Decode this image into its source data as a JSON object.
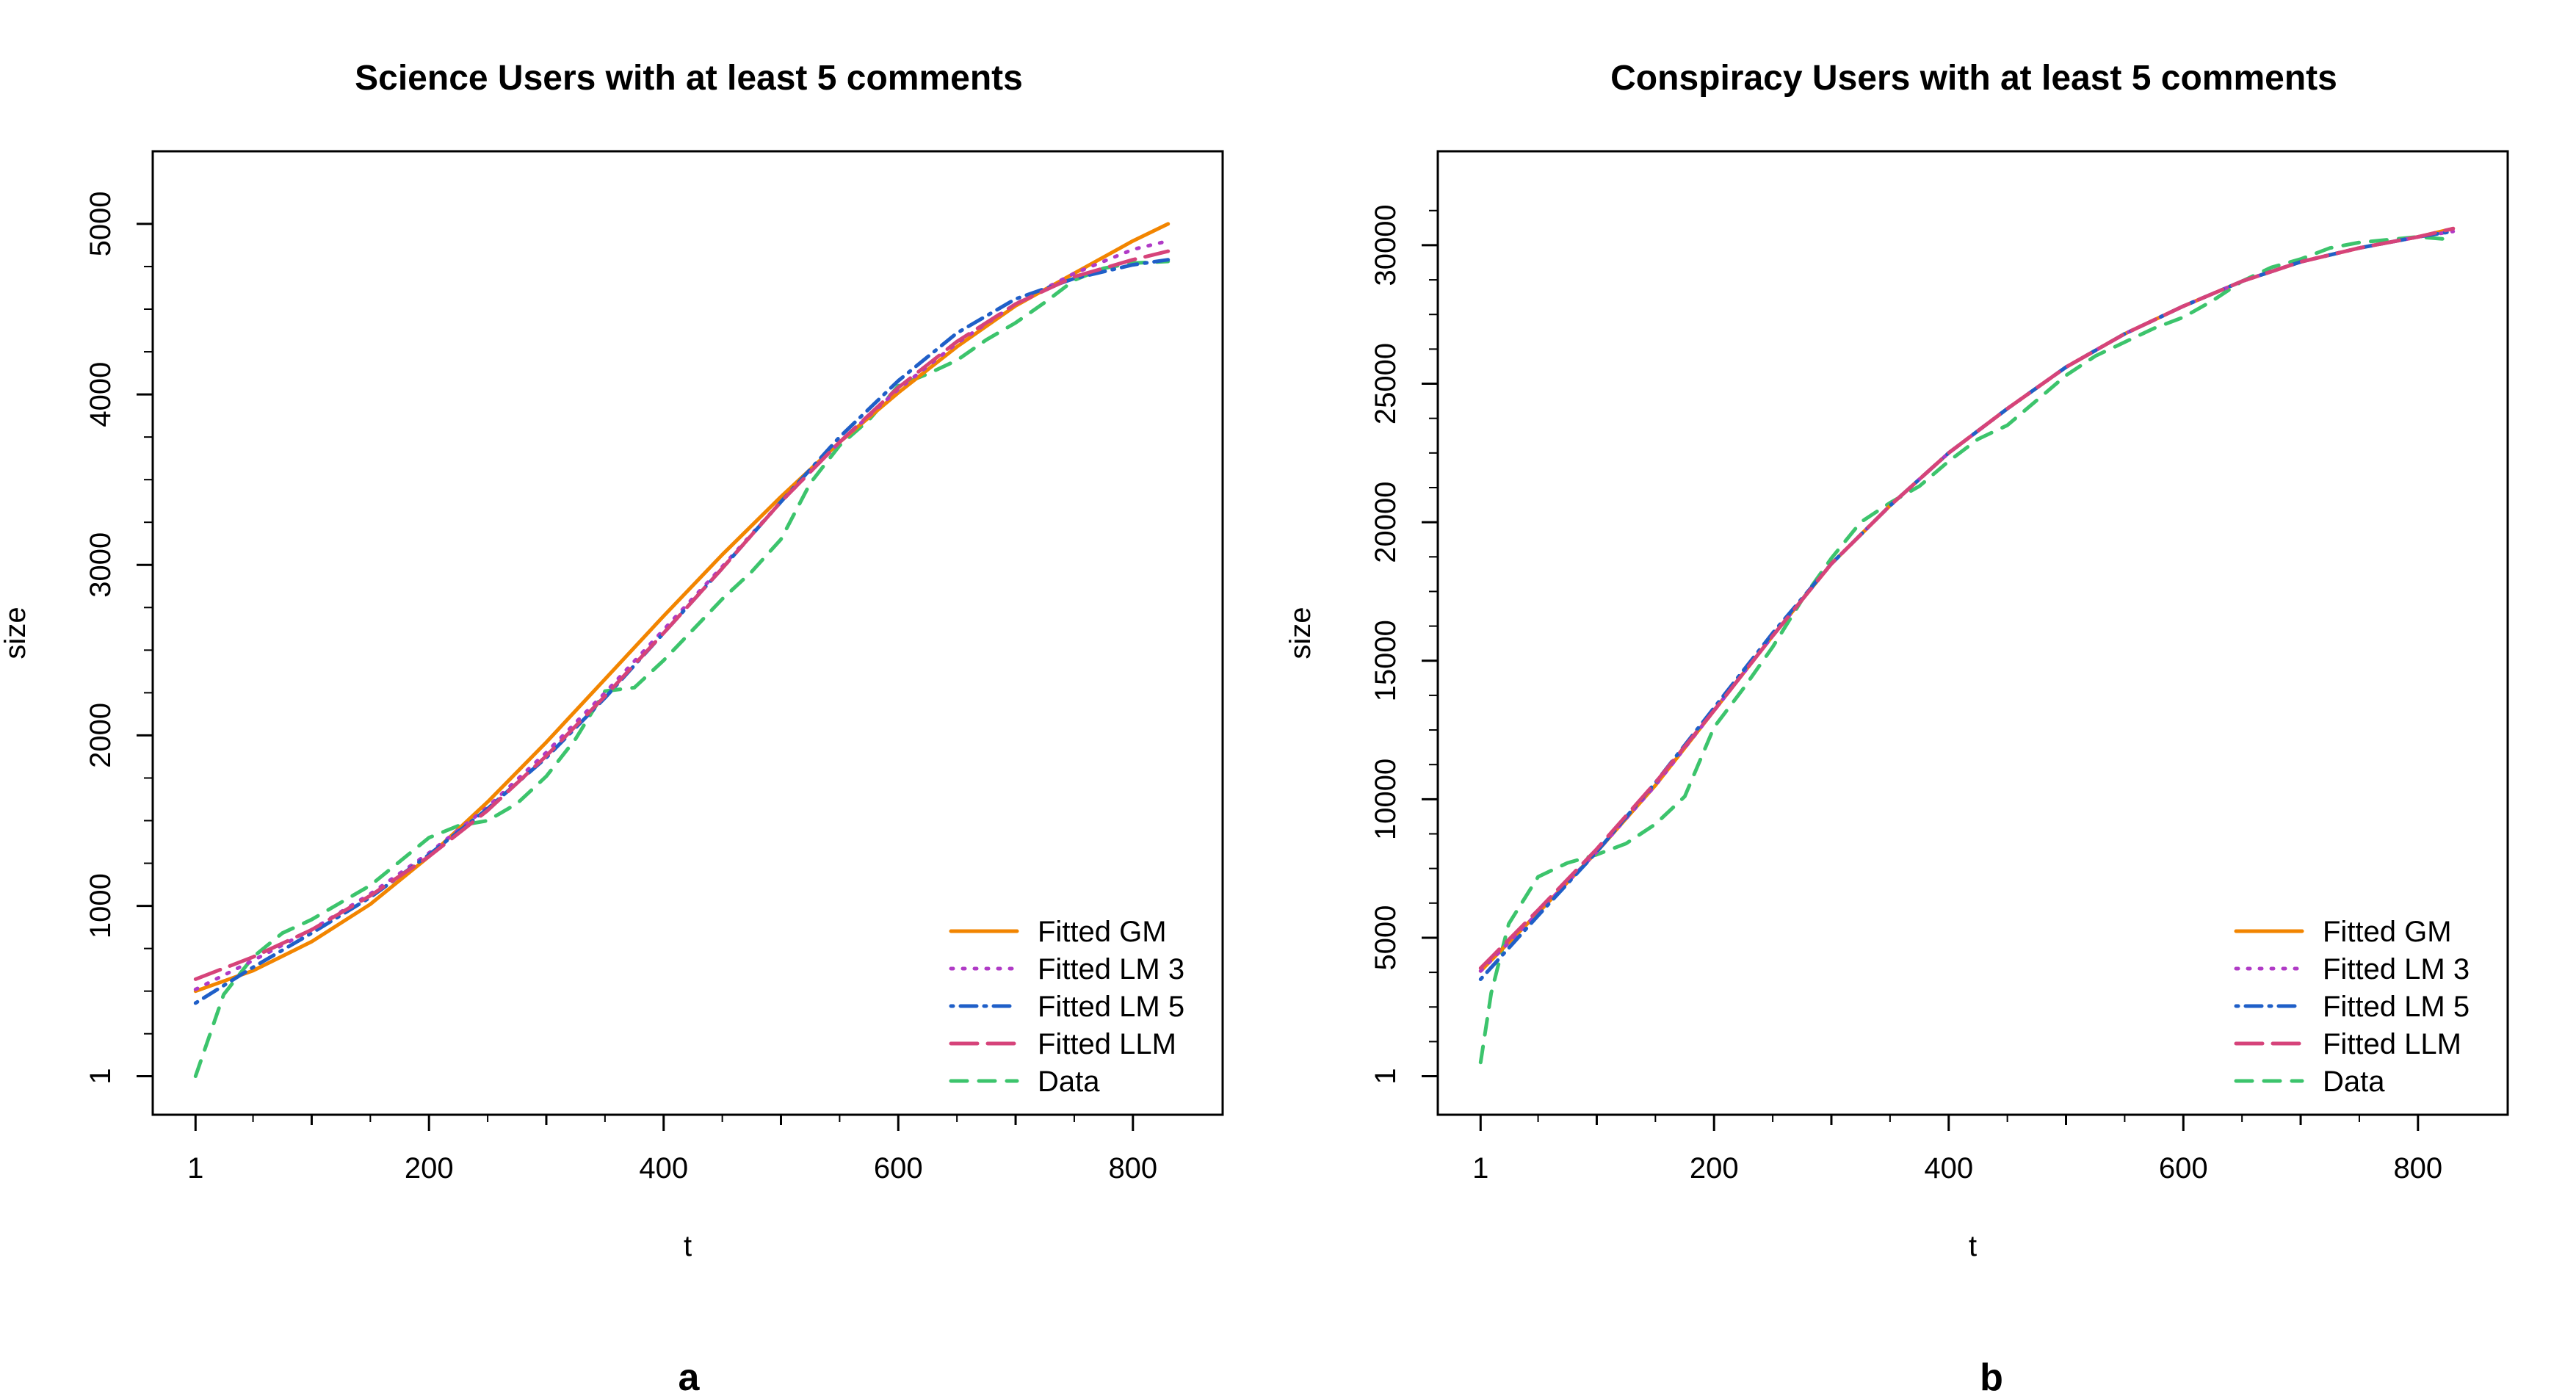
{
  "chart_data": [
    {
      "type": "line",
      "title": "Science Users with at least 5 comments",
      "xlabel": "t",
      "ylabel": "size",
      "panel_label": "a",
      "xlim": [
        1,
        840
      ],
      "ylim": [
        1,
        5200
      ],
      "xticks": [
        1,
        200,
        400,
        600,
        800
      ],
      "yticks": [
        1,
        1000,
        2000,
        3000,
        4000,
        5000
      ],
      "legend_position": "bottom-right",
      "series": [
        {
          "name": "Fitted GM",
          "color": "#F28500",
          "dash": "solid",
          "x": [
            1,
            50,
            100,
            150,
            200,
            250,
            300,
            350,
            400,
            450,
            500,
            550,
            600,
            650,
            700,
            750,
            800,
            830
          ],
          "y": [
            500,
            620,
            790,
            1010,
            1290,
            1610,
            1960,
            2330,
            2700,
            3060,
            3400,
            3720,
            4010,
            4280,
            4520,
            4710,
            4900,
            5000
          ]
        },
        {
          "name": "Fitted LM 3",
          "color": "#B03AC6",
          "dash": "dotted",
          "x": [
            1,
            50,
            100,
            150,
            200,
            250,
            300,
            350,
            400,
            450,
            500,
            550,
            600,
            650,
            700,
            750,
            800,
            830
          ],
          "y": [
            510,
            680,
            860,
            1070,
            1310,
            1580,
            1900,
            2250,
            2620,
            2990,
            3370,
            3720,
            4030,
            4300,
            4530,
            4710,
            4850,
            4900
          ]
        },
        {
          "name": "Fitted LM 5",
          "color": "#1F5FC8",
          "dash": "dotdash",
          "x": [
            1,
            50,
            100,
            150,
            200,
            250,
            300,
            350,
            400,
            450,
            500,
            550,
            600,
            650,
            700,
            750,
            800,
            830
          ],
          "y": [
            430,
            640,
            840,
            1050,
            1300,
            1570,
            1870,
            2220,
            2600,
            2980,
            3370,
            3750,
            4080,
            4360,
            4560,
            4680,
            4760,
            4790
          ]
        },
        {
          "name": "Fitted LLM",
          "color": "#D6437A",
          "dash": "longdash",
          "x": [
            1,
            50,
            100,
            150,
            200,
            250,
            300,
            350,
            400,
            450,
            500,
            550,
            600,
            650,
            700,
            750,
            800,
            830
          ],
          "y": [
            570,
            700,
            860,
            1060,
            1290,
            1560,
            1880,
            2230,
            2600,
            2980,
            3370,
            3720,
            4040,
            4310,
            4530,
            4690,
            4790,
            4840
          ]
        },
        {
          "name": "Data",
          "color": "#3CC46C",
          "dash": "dashed",
          "x": [
            1,
            25,
            50,
            75,
            100,
            125,
            150,
            175,
            200,
            225,
            250,
            275,
            300,
            325,
            350,
            375,
            400,
            425,
            450,
            475,
            500,
            525,
            550,
            575,
            600,
            625,
            650,
            675,
            700,
            725,
            750,
            775,
            800,
            830
          ],
          "y": [
            1,
            480,
            700,
            840,
            920,
            1020,
            1120,
            1260,
            1400,
            1470,
            1500,
            1600,
            1760,
            1980,
            2260,
            2280,
            2440,
            2620,
            2800,
            2960,
            3150,
            3480,
            3700,
            3850,
            4050,
            4120,
            4200,
            4320,
            4420,
            4540,
            4670,
            4740,
            4770,
            4780
          ]
        }
      ]
    },
    {
      "type": "line",
      "title": "Conspiracy Users with at least 5 comments",
      "xlabel": "t",
      "ylabel": "size",
      "panel_label": "b",
      "xlim": [
        1,
        840
      ],
      "ylim": [
        1,
        32000
      ],
      "xticks": [
        1,
        200,
        400,
        600,
        800
      ],
      "yticks": [
        1,
        5000,
        10000,
        15000,
        20000,
        25000,
        30000
      ],
      "legend_position": "bottom-right",
      "series": [
        {
          "name": "Fitted GM",
          "color": "#F28500",
          "dash": "solid",
          "x": [
            1,
            50,
            100,
            150,
            200,
            250,
            300,
            350,
            400,
            450,
            500,
            550,
            600,
            650,
            700,
            750,
            800,
            830
          ],
          "y": [
            3800,
            5900,
            8100,
            10500,
            13200,
            15900,
            18500,
            20600,
            22500,
            24100,
            25600,
            26800,
            27800,
            28700,
            29400,
            29900,
            30300,
            30600
          ]
        },
        {
          "name": "Fitted LM 3",
          "color": "#B03AC6",
          "dash": "dotted",
          "x": [
            1,
            50,
            100,
            150,
            200,
            250,
            300,
            350,
            400,
            450,
            500,
            550,
            600,
            650,
            700,
            750,
            800,
            830
          ],
          "y": [
            3800,
            5900,
            8100,
            10500,
            13200,
            15900,
            18500,
            20600,
            22500,
            24100,
            25600,
            26800,
            27800,
            28700,
            29400,
            29900,
            30300,
            30500
          ]
        },
        {
          "name": "Fitted LM 5",
          "color": "#1F5FC8",
          "dash": "dotdash",
          "x": [
            1,
            50,
            100,
            150,
            200,
            250,
            300,
            350,
            400,
            450,
            500,
            550,
            600,
            650,
            700,
            750,
            800,
            830
          ],
          "y": [
            3500,
            5800,
            8100,
            10600,
            13300,
            16000,
            18500,
            20600,
            22500,
            24100,
            25600,
            26800,
            27800,
            28700,
            29400,
            29900,
            30300,
            30500
          ]
        },
        {
          "name": "Fitted LLM",
          "color": "#D6437A",
          "dash": "longdash",
          "x": [
            1,
            50,
            100,
            150,
            200,
            250,
            300,
            350,
            400,
            450,
            500,
            550,
            600,
            650,
            700,
            750,
            800,
            830
          ],
          "y": [
            3900,
            6000,
            8200,
            10600,
            13200,
            15900,
            18500,
            20600,
            22500,
            24100,
            25600,
            26800,
            27800,
            28700,
            29400,
            29900,
            30300,
            30600
          ]
        },
        {
          "name": "Data",
          "color": "#3CC46C",
          "dash": "dashed",
          "x": [
            1,
            10,
            25,
            50,
            75,
            100,
            125,
            150,
            175,
            200,
            225,
            250,
            275,
            300,
            325,
            350,
            375,
            400,
            425,
            450,
            475,
            500,
            525,
            550,
            575,
            600,
            625,
            650,
            675,
            700,
            725,
            750,
            775,
            800,
            830
          ],
          "y": [
            500,
            3000,
            5500,
            7200,
            7700,
            8000,
            8400,
            9100,
            10100,
            12600,
            14000,
            15500,
            17200,
            18700,
            20000,
            20700,
            21300,
            22200,
            23000,
            23500,
            24400,
            25300,
            26000,
            26500,
            27000,
            27400,
            28000,
            28700,
            29200,
            29500,
            29900,
            30100,
            30200,
            30300,
            30200
          ]
        }
      ]
    }
  ]
}
